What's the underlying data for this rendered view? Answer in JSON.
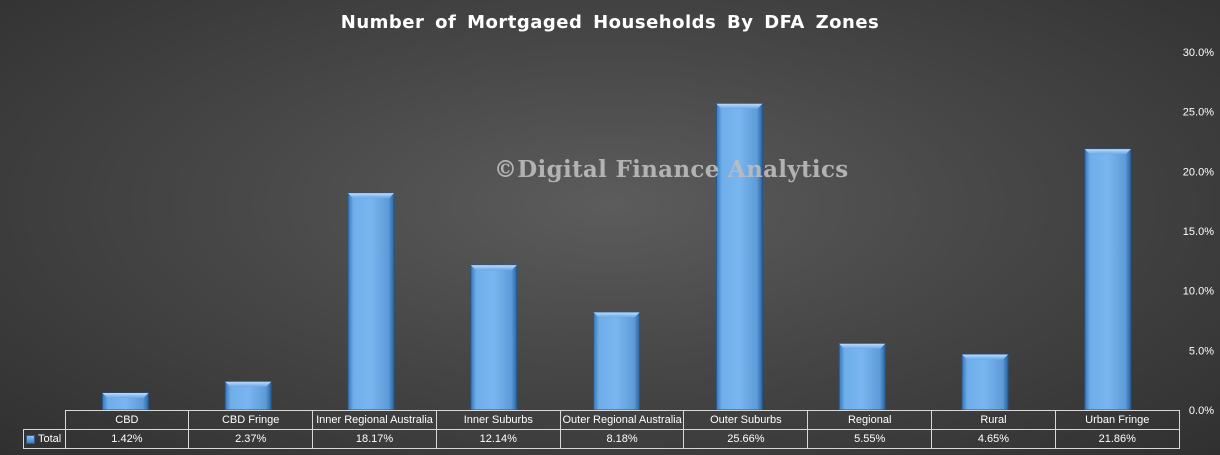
{
  "chart_data": {
    "type": "bar",
    "title": "Number of Mortgaged Households By DFA Zones",
    "watermark": "©Digital Finance Analytics",
    "categories": [
      "CBD",
      "CBD Fringe",
      "Inner Regional Australia",
      "Inner Suburbs",
      "Outer Regional Australia",
      "Outer Suburbs",
      "Regional",
      "Rural",
      "Urban Fringe"
    ],
    "series": [
      {
        "name": "Total",
        "values": [
          1.42,
          2.37,
          18.17,
          12.14,
          8.18,
          25.66,
          5.55,
          4.65,
          21.86
        ]
      }
    ],
    "value_labels": [
      "1.42%",
      "2.37%",
      "18.17%",
      "12.14%",
      "8.18%",
      "25.66%",
      "5.55%",
      "4.65%",
      "21.86%"
    ],
    "ylim": [
      0,
      30
    ],
    "y_ticks": [
      "0.0%",
      "5.0%",
      "10.0%",
      "15.0%",
      "20.0%",
      "25.0%",
      "30.0%"
    ],
    "y_axis_position": "right",
    "grid": false,
    "legend": "data-table",
    "colors": {
      "bar": "#6aaae9",
      "bar_dark": "#2f6aa8",
      "text": "#ffffff"
    }
  }
}
